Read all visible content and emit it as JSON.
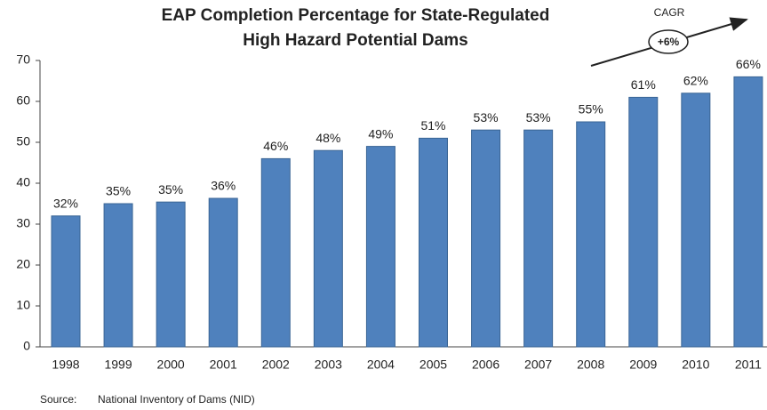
{
  "chart_data": {
    "type": "bar",
    "title": [
      "EAP Completion Percentage for State-Regulated",
      "High Hazard Potential Dams"
    ],
    "categories": [
      "1998",
      "1999",
      "2000",
      "2001",
      "2002",
      "2003",
      "2004",
      "2005",
      "2006",
      "2007",
      "2008",
      "2009",
      "2010",
      "2011"
    ],
    "values": [
      32,
      35,
      35.4,
      36.3,
      46,
      48,
      49,
      51,
      53,
      53,
      55,
      61,
      62,
      66
    ],
    "value_labels": [
      "32%",
      "35%",
      "35%",
      "36%",
      "46%",
      "48%",
      "49%",
      "51%",
      "53%",
      "53%",
      "55%",
      "61%",
      "62%",
      "66%"
    ],
    "color": "#4f81bd",
    "ylim": [
      0,
      70
    ],
    "yticks": [
      0,
      10,
      20,
      30,
      40,
      50,
      60,
      70
    ],
    "grid": false,
    "annotation": {
      "label": "CAGR",
      "value": "+6%"
    },
    "source_label": "Source:",
    "source": "National Inventory of Dams (NID)"
  }
}
